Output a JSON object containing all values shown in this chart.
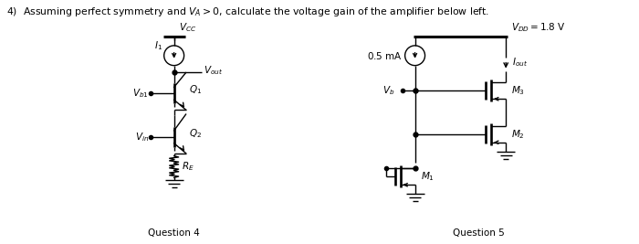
{
  "bg_color": "#ffffff",
  "text_color": "#000000",
  "q4_label": "Question 4",
  "q5_label": "Question 5",
  "isource_label": "0.5 mA"
}
